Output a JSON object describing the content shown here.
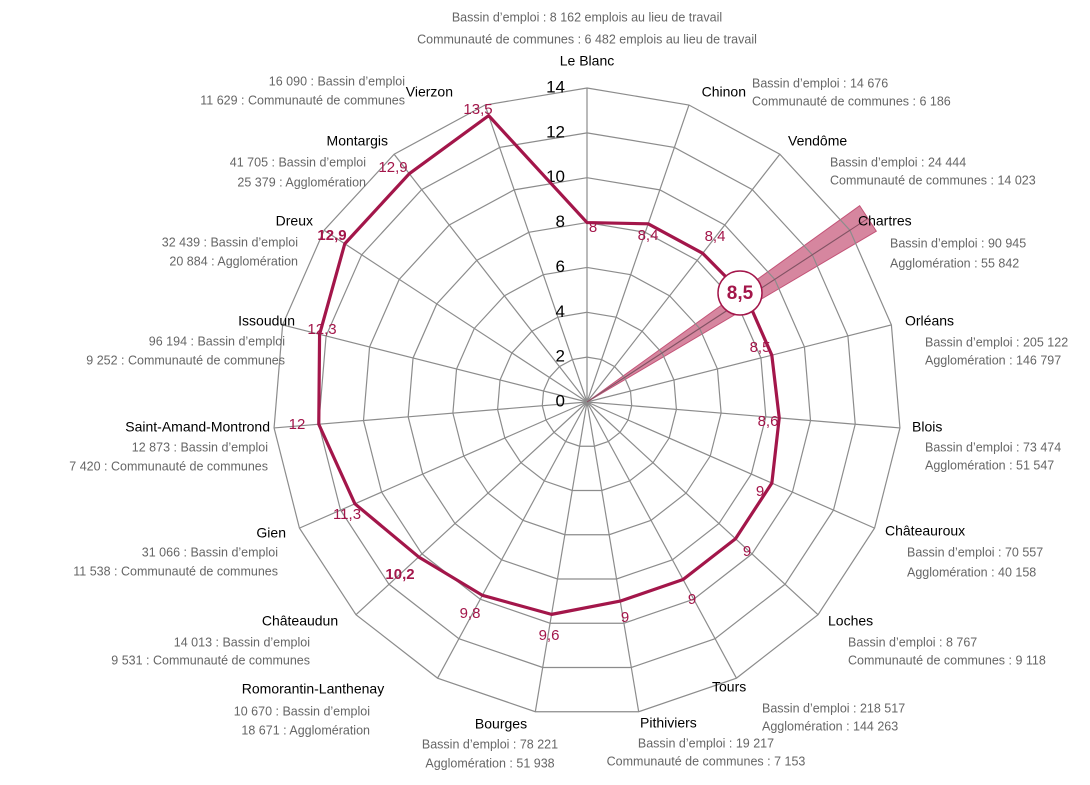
{
  "chart_data": {
    "type": "radar",
    "categories": [
      "Le Blanc",
      "Chinon",
      "Vendôme",
      "Chartres",
      "Orléans",
      "Blois",
      "Châteauroux",
      "Loches",
      "Tours",
      "Pithiviers",
      "Bourges",
      "Romorantin-Lanthenay",
      "Châteaudun",
      "Gien",
      "Saint-Amand-Montrond",
      "Issoudun",
      "Dreux",
      "Montargis",
      "Vierzon"
    ],
    "details": [
      [
        "Bassin d’emploi : 8 162 emplois au lieu de travail",
        "Communauté de communes : 6 482 emplois au lieu de travail"
      ],
      [
        "Bassin d’emploi : 14 676",
        "Communauté de communes   : 6 186"
      ],
      [
        "Bassin d’emploi : 24 444",
        "Communauté de communes : 14 023"
      ],
      [
        "Bassin d’emploi : 90 945",
        "Agglomération : 55 842"
      ],
      [
        "Bassin d’emploi : 205 122",
        "Agglomération : 146 797"
      ],
      [
        "Bassin d’emploi : 73 474",
        "Agglomération : 51 547"
      ],
      [
        "Bassin d’emploi : 70 557",
        "Agglomération : 40 158"
      ],
      [
        "Bassin d’emploi : 8 767",
        "Communauté de communes : 9 118"
      ],
      [
        "Bassin d’emploi : 218 517",
        "Agglomération : 144 263"
      ],
      [
        "Bassin d’emploi : 19 217",
        "Communauté de communes : 7 153"
      ],
      [
        "Bassin d’emploi : 78 221",
        "Agglomération : 51 938"
      ],
      [
        "10 670 : Bassin d’emploi",
        "18 671 : Agglomération"
      ],
      [
        "14 013 : Bassin d’emploi",
        "9 531 : Communauté de communes"
      ],
      [
        "31 066 : Bassin d’emploi",
        "11 538 : Communauté de communes"
      ],
      [
        "12 873 : Bassin d’emploi",
        "7 420 : Communauté de communes"
      ],
      [
        "96 194 : Bassin d’emploi",
        "9 252 : Communauté de communes"
      ],
      [
        "32 439 : Bassin d’emploi",
        "20 884 : Agglomération"
      ],
      [
        "41 705 : Bassin d’emploi",
        "25 379 : Agglomération"
      ],
      [
        "16 090 : Bassin d’emploi",
        "11 629 : Communauté de communes"
      ]
    ],
    "values": [
      8,
      8.4,
      8.4,
      8.5,
      8.5,
      8.6,
      9,
      9,
      9,
      9,
      9.6,
      9.8,
      10.2,
      11.3,
      12,
      12.3,
      12.9,
      12.9,
      13.5
    ],
    "value_labels": [
      "8",
      "8,4",
      "8,4",
      "8,5",
      "8,5",
      "8,6",
      "9",
      "9",
      "9",
      "9",
      "9,6",
      "9,8",
      "10,2",
      "11,3",
      "12",
      "12,3",
      "12,9",
      "12,9",
      "13,5"
    ],
    "color": "#a3164a",
    "highlight_index": 3,
    "bold_value_labels": [
      12,
      16
    ],
    "ylim": [
      0,
      14
    ],
    "yticks": [
      0,
      2,
      4,
      6,
      8,
      10,
      12,
      14
    ]
  }
}
